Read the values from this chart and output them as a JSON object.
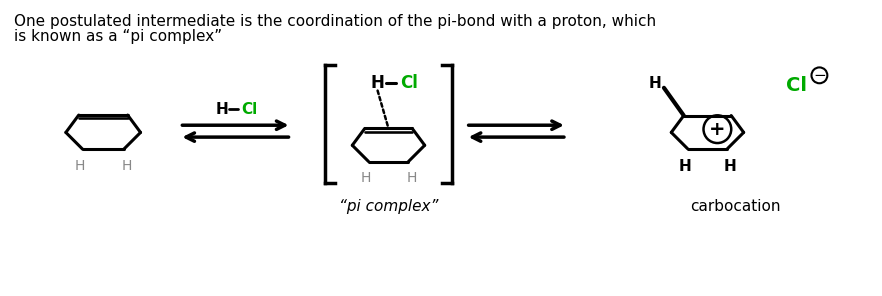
{
  "title_line1": "One postulated intermediate is the coordination of the pi-bond with a proton, which",
  "title_line2": "is known as a “pi complex”",
  "label_pi_complex": "“pi complex”",
  "label_carbocation": "carbocation",
  "background_color": "#ffffff",
  "text_color": "#000000",
  "green_color": "#00aa00",
  "gray_color": "#888888",
  "title_fontsize": 11,
  "label_fontsize": 11,
  "figsize": [
    8.82,
    2.96
  ],
  "dpi": 100
}
